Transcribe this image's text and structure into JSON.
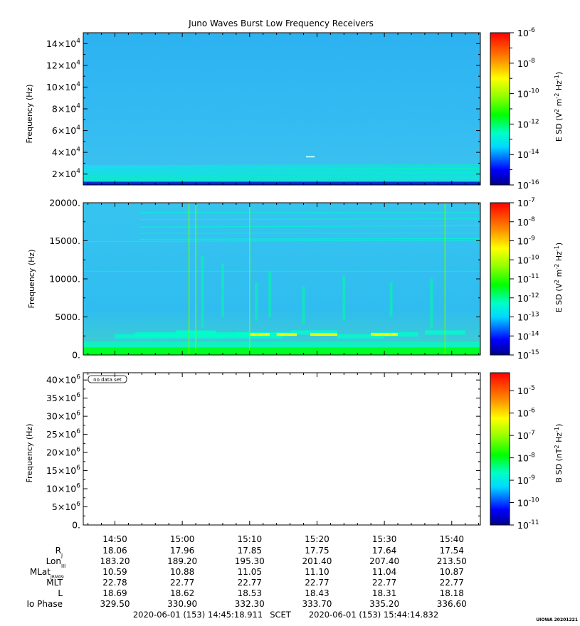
{
  "title": "Juno Waves Burst Low Frequency Receivers",
  "chart_data": [
    {
      "type": "heatmap",
      "panel": "top",
      "ylabel": "Frequency (Hz)",
      "ylim": [
        10000,
        150000
      ],
      "ytick_mantissas": [
        "2",
        "4",
        "6",
        "8",
        "10",
        "12",
        "14"
      ],
      "ytick_exponent": "4",
      "ytick_base": "×10",
      "colorbar": {
        "label_main": "E SD (V",
        "label_m": " m",
        "label_hz": " Hz",
        "sup2": "2",
        "supm2": "-2",
        "supm1": "-1",
        "label_close": ")",
        "scale": "log",
        "ticks": [
          "-6",
          "-8",
          "-10",
          "-12",
          "-14",
          "-16"
        ],
        "tick_base": "10",
        "range": [
          -16,
          -6
        ]
      },
      "features": {
        "background_level": -14.3,
        "band_hz": [
          12000,
          28000
        ],
        "band_level": -13.0,
        "trough_hz": [
          10000,
          13000
        ],
        "trough_level": -15.5,
        "blip": {
          "time": "15:19",
          "freq_hz": 36000
        }
      }
    },
    {
      "type": "heatmap",
      "panel": "middle",
      "ylabel": "Frequency (Hz)",
      "ylim": [
        0,
        20000
      ],
      "yticks": [
        "20000.",
        "15000.",
        "10000.",
        "5000.",
        "0."
      ],
      "ytick_values": [
        20000,
        15000,
        10000,
        5000,
        0
      ],
      "colorbar": {
        "label_main": "E SD (V",
        "label_m": " m",
        "label_hz": " Hz",
        "sup2": "2",
        "supm2": "-2",
        "supm1": "-1",
        "label_close": ")",
        "scale": "log",
        "ticks": [
          "-7",
          "-8",
          "-9",
          "-10",
          "-11",
          "-12",
          "-13",
          "-14",
          "-15"
        ],
        "tick_base": "10",
        "range": [
          -15,
          -7
        ]
      },
      "features": {
        "background_level": -13.0,
        "low_band_hz": [
          0,
          1000
        ],
        "low_band_level": -11.5,
        "emission_hz": 2700,
        "emission_level": -9.5,
        "spike_times": [
          "15:01",
          "15:02",
          "15:10",
          "15:39"
        ]
      }
    },
    {
      "type": "heatmap",
      "panel": "bottom",
      "ylabel": "Frequency (Hz)",
      "ylim": [
        0,
        42000000
      ],
      "ytick_mantissas": [
        "40",
        "35",
        "30",
        "25",
        "20",
        "15",
        "10",
        "5"
      ],
      "ytick_exponent": "6",
      "ytick_base": "×10",
      "ytick_zero": "0.",
      "note": "no data set",
      "colorbar": {
        "label_main": "B SD (nT",
        "label_hz": " Hz",
        "sup2": "2",
        "supm1": "-1",
        "label_close": ")",
        "scale": "log",
        "ticks": [
          "-5",
          "-6",
          "-7",
          "-8",
          "-9",
          "-10",
          "-11"
        ],
        "tick_base": "10",
        "range": [
          -11,
          -4.2
        ]
      }
    }
  ],
  "xaxis": {
    "ticks": [
      "14:50",
      "15:00",
      "15:10",
      "15:20",
      "15:30",
      "15:40"
    ],
    "tick_minutes": [
      890,
      900,
      910,
      920,
      930,
      940
    ],
    "minor_step_minutes": 2,
    "start_minute": 885.3,
    "end_minute": 944.25
  },
  "ephemeris": {
    "rows": [
      {
        "label": "R",
        "sub": "J",
        "values": [
          "18.06",
          "17.96",
          "17.85",
          "17.75",
          "17.64",
          "17.54"
        ]
      },
      {
        "label": "Lon",
        "sub": "III",
        "values": [
          "183.20",
          "189.20",
          "195.30",
          "201.40",
          "207.40",
          "213.50"
        ]
      },
      {
        "label": "MLat",
        "sub": "JRM09",
        "values": [
          "10.59",
          "10.88",
          "11.05",
          "11.10",
          "11.04",
          "10.87"
        ]
      },
      {
        "label": "MLT",
        "sub": "",
        "values": [
          "22.78",
          "22.77",
          "22.77",
          "22.77",
          "22.77",
          "22.77"
        ]
      },
      {
        "label": "L",
        "sub": "",
        "values": [
          "18.69",
          "18.62",
          "18.53",
          "18.43",
          "18.31",
          "18.18"
        ]
      },
      {
        "label": "Io Phase",
        "sub": "",
        "values": [
          "329.50",
          "330.90",
          "332.30",
          "333.70",
          "335.20",
          "336.60"
        ]
      }
    ]
  },
  "footer": {
    "start": "2020-06-01 (153) 14:45:18.911",
    "scet": "SCET",
    "end": "2020-06-01 (153) 15:44:14.832",
    "credit": "UIOWA 20201221"
  }
}
